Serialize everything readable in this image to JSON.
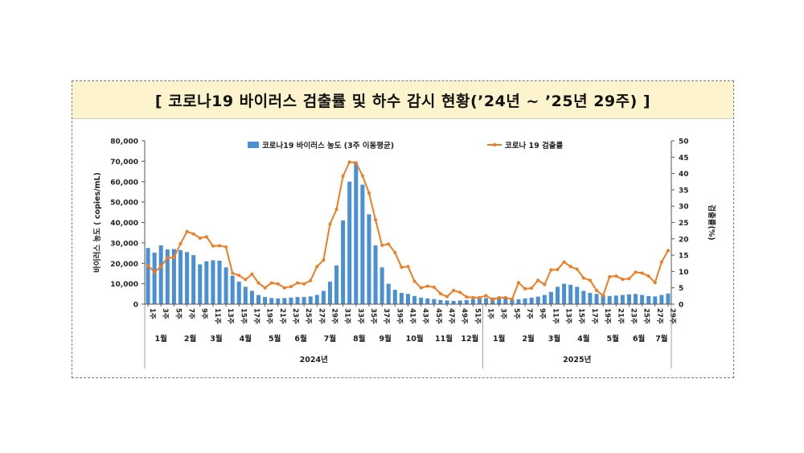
{
  "title": "[ 코로나19 바이러스 검출률 및 하수 감시 현황(’24년 ~ ’25년 29주) ]",
  "colors": {
    "bar": "#4a90d2",
    "line": "#f07c22",
    "title_bg": "#fdf3cc"
  },
  "chart_data": {
    "type": "bar+line",
    "left_axis_label": "바이러스 농도 ( copies/mL)",
    "right_axis_label": "검출률(%)",
    "left_ylim": [
      0,
      80000
    ],
    "right_ylim": [
      0,
      50
    ],
    "left_ticks": [
      "0",
      "10,000",
      "20,000",
      "30,000",
      "40,000",
      "50,000",
      "60,000",
      "70,000",
      "80,000"
    ],
    "right_ticks": [
      "0",
      "5",
      "10",
      "15",
      "20",
      "25",
      "30",
      "35",
      "40",
      "45",
      "50"
    ],
    "legend": {
      "bar": "코로나19 바이러스 농도 (3주 이동평균)",
      "line": "코로나 19 검출률"
    },
    "weeks_2024": 52,
    "weeks_2025": 29,
    "week_labels_2024": [
      "1주",
      "3주",
      "5주",
      "7주",
      "9주",
      "11주",
      "13주",
      "15주",
      "17주",
      "19주",
      "21주",
      "23주",
      "25주",
      "27주",
      "29주",
      "31주",
      "33주",
      "35주",
      "37주",
      "39주",
      "41주",
      "43주",
      "45주",
      "47주",
      "49주",
      "51주"
    ],
    "week_labels_2025": [
      "1주",
      "3주",
      "5주",
      "7주",
      "9주",
      "11주",
      "13주",
      "15주",
      "17주",
      "19주",
      "21주",
      "23주",
      "25주",
      "27주",
      "29주"
    ],
    "months_2024": [
      {
        "label": "1월",
        "from": 1,
        "to": 5
      },
      {
        "label": "2월",
        "from": 6,
        "to": 9
      },
      {
        "label": "3월",
        "from": 10,
        "to": 13
      },
      {
        "label": "4월",
        "from": 14,
        "to": 18
      },
      {
        "label": "5월",
        "from": 19,
        "to": 22
      },
      {
        "label": "6월",
        "from": 23,
        "to": 26
      },
      {
        "label": "7월",
        "from": 27,
        "to": 31
      },
      {
        "label": "8월",
        "from": 32,
        "to": 35
      },
      {
        "label": "9월",
        "from": 36,
        "to": 39
      },
      {
        "label": "10월",
        "from": 40,
        "to": 44
      },
      {
        "label": "11월",
        "from": 45,
        "to": 48
      },
      {
        "label": "12월",
        "from": 49,
        "to": 52
      }
    ],
    "months_2025": [
      {
        "label": "1월",
        "from": 1,
        "to": 5
      },
      {
        "label": "2월",
        "from": 6,
        "to": 9
      },
      {
        "label": "3월",
        "from": 10,
        "to": 13
      },
      {
        "label": "4월",
        "from": 14,
        "to": 18
      },
      {
        "label": "5월",
        "from": 19,
        "to": 22
      },
      {
        "label": "6월",
        "from": 23,
        "to": 26
      },
      {
        "label": "7월",
        "from": 27,
        "to": 29
      }
    ],
    "year_labels": [
      "2024년",
      "2025년"
    ],
    "concentration": [
      27500,
      25200,
      28800,
      26800,
      27000,
      26500,
      25500,
      24000,
      19500,
      21000,
      21500,
      21300,
      18000,
      14000,
      11000,
      8500,
      6500,
      4500,
      3500,
      3000,
      2800,
      3000,
      3200,
      3500,
      3500,
      3800,
      4500,
      6500,
      11000,
      19000,
      41000,
      60000,
      69000,
      58500,
      44000,
      28800,
      18000,
      10000,
      7000,
      5500,
      5000,
      4000,
      3200,
      2800,
      2500,
      2000,
      1800,
      1600,
      1800,
      2000,
      2500,
      2800,
      3000,
      3200,
      3100,
      2800,
      2500,
      2400,
      2800,
      3200,
      3700,
      4500,
      6000,
      8500,
      10000,
      9500,
      8500,
      6500,
      5500,
      5000,
      4500,
      4000,
      4200,
      4500,
      4800,
      5000,
      4500,
      4000,
      3800,
      4500,
      5200
    ],
    "detection_rate": [
      11.8,
      9.8,
      11.5,
      14.2,
      14.3,
      18.5,
      22.2,
      21.5,
      20.2,
      20.6,
      17.8,
      17.9,
      17.5,
      9.5,
      8.8,
      7.5,
      9.2,
      6.5,
      5.0,
      6.5,
      6.2,
      5.0,
      5.4,
      6.5,
      6.2,
      7.2,
      11.5,
      13.5,
      24.5,
      29.0,
      39.2,
      43.5,
      43.3,
      39.3,
      34.0,
      25.8,
      18.0,
      18.4,
      15.8,
      11.3,
      11.5,
      7.0,
      5.0,
      5.5,
      5.2,
      3.2,
      2.3,
      4.2,
      3.6,
      2.2,
      2.0,
      2.0,
      2.6,
      1.4,
      2.0,
      2.0,
      1.5,
      6.6,
      4.7,
      4.9,
      7.3,
      6.0,
      10.5,
      10.6,
      12.9,
      11.5,
      10.7,
      8.0,
      7.3,
      4.2,
      2.6,
      8.4,
      8.6,
      7.6,
      7.8,
      9.8,
      9.5,
      8.6,
      6.6,
      12.9,
      16.4
    ]
  }
}
